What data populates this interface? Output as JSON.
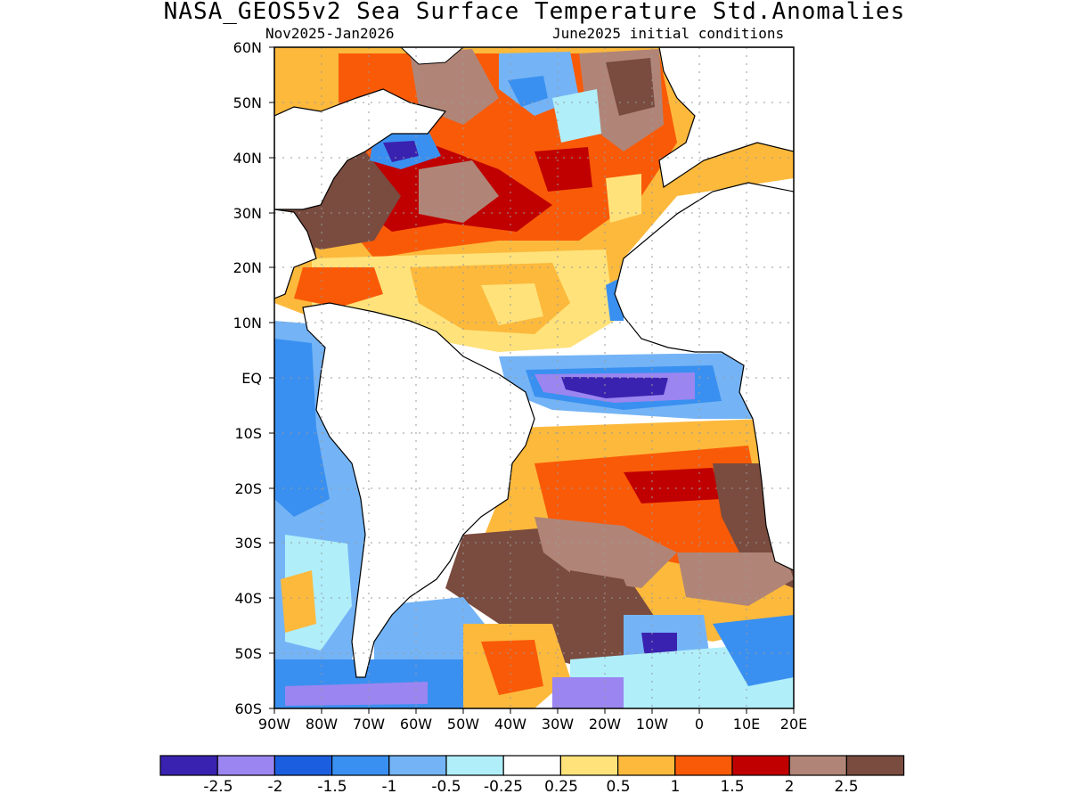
{
  "title": "NASA_GEOS5v2 Sea Surface Temperature Std.Anomalies",
  "subtitle_left": "Nov2025-Jan2026",
  "subtitle_right": "June2025 initial conditions",
  "lat_labels": [
    "60N",
    "50N",
    "40N",
    "30N",
    "20N",
    "10N",
    "EQ",
    "10S",
    "20S",
    "30S",
    "40S",
    "50S",
    "60S"
  ],
  "lon_labels": [
    "90W",
    "80W",
    "70W",
    "60W",
    "50W",
    "40W",
    "30W",
    "20W",
    "10W",
    "0",
    "10E",
    "20E"
  ],
  "colorbar": {
    "colors": [
      "#3a22b0",
      "#9b85f0",
      "#1c5ee0",
      "#3a90f0",
      "#74b4f6",
      "#b0eefa",
      "#ffffff",
      "#ffe27a",
      "#fcb93c",
      "#f95a08",
      "#c00000",
      "#b08577",
      "#7a4b3f"
    ],
    "labels": [
      "-2.5",
      "-2",
      "-1.5",
      "-1",
      "-0.5",
      "-0.25",
      "0.25",
      "0.5",
      "1",
      "1.5",
      "2",
      "2.5"
    ]
  }
}
